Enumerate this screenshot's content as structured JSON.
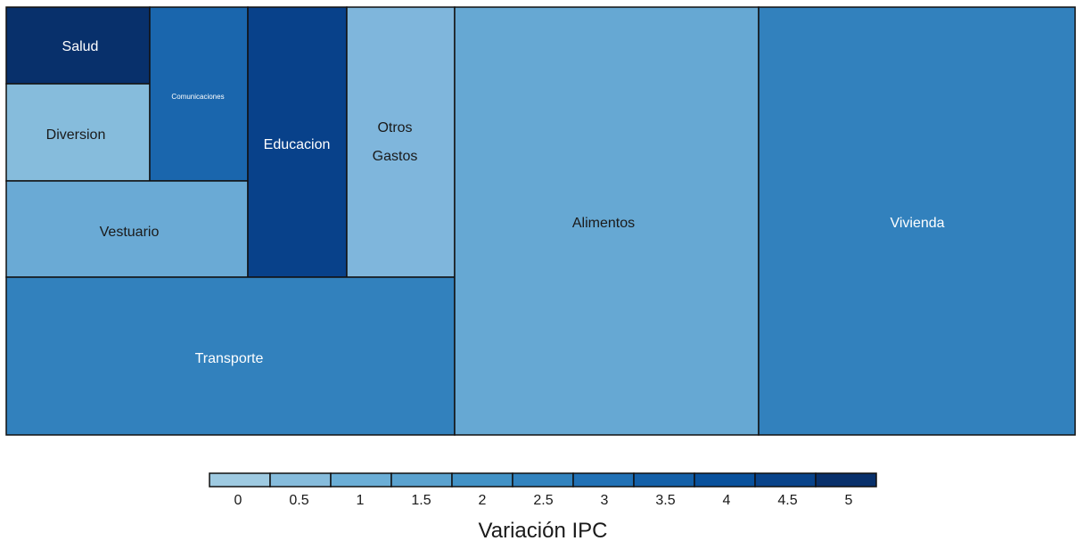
{
  "chart_data": {
    "type": "treemap",
    "title": "",
    "legend": {
      "title": "Variación IPC",
      "placement": "bottom",
      "ticks": [
        "0",
        "0.5",
        "1",
        "1.5",
        "2",
        "2.5",
        "3",
        "3.5",
        "4",
        "4.5",
        "5"
      ],
      "colors": [
        "#9ecae1",
        "#86bcdc",
        "#6baed6",
        "#5aa2cf",
        "#4292c6",
        "#3283be",
        "#2171b5",
        "#1460a8",
        "#08519c",
        "#08438a",
        "#08306b"
      ]
    },
    "items": [
      {
        "label": "Salud",
        "value": 5.0,
        "label_color": "#ffffff",
        "fill": "#08306b"
      },
      {
        "label": "Diversion",
        "value": 1.0,
        "label_color": "#1a1a1a",
        "fill": "#86bcdc"
      },
      {
        "label": "Comunicaciones",
        "value": 3.5,
        "label_color": "#ffffff",
        "fill": "#1a66ad"
      },
      {
        "label": "Vestuario",
        "value": 1.0,
        "label_color": "#1a1a1a",
        "fill": "#6aaad5"
      },
      {
        "label": "Educacion",
        "value": 4.5,
        "label_color": "#ffffff",
        "fill": "#08418a"
      },
      {
        "label": "Otros Gastos",
        "value": 0.5,
        "label_color": "#1a1a1a",
        "fill": "#7fb6dc"
      },
      {
        "label": "Transporte",
        "value": 2.5,
        "label_color": "#ffffff",
        "fill": "#3281bd"
      },
      {
        "label": "Alimentos",
        "value": 1.0,
        "label_color": "#1a1a1a",
        "fill": "#66a8d3"
      },
      {
        "label": "Vivienda",
        "value": 2.5,
        "label_color": "#ffffff",
        "fill": "#3281bd"
      }
    ]
  }
}
